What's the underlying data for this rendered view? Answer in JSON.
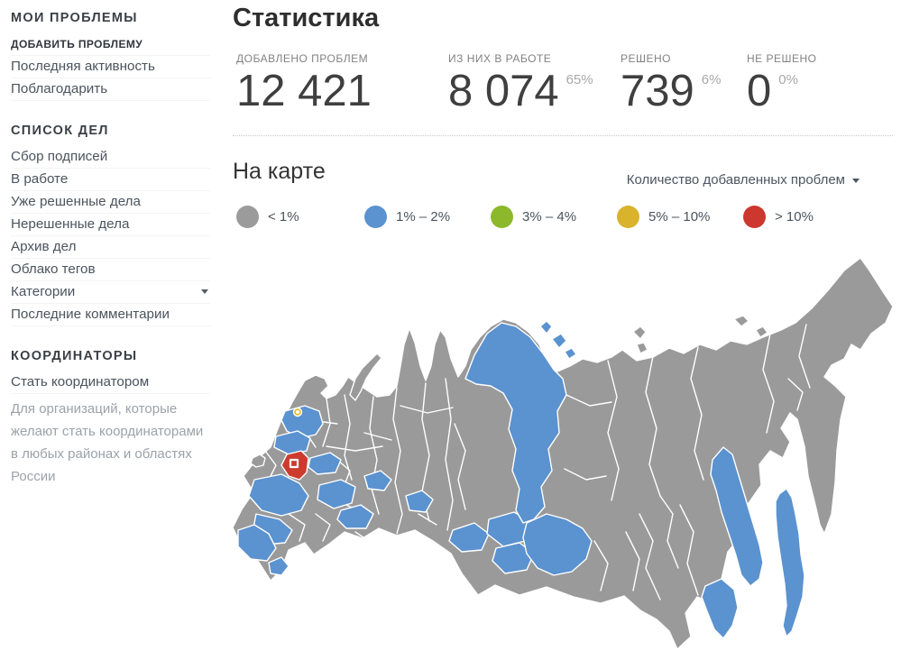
{
  "sidebar": {
    "sections": [
      {
        "title": "МОИ ПРОБЛЕМЫ",
        "items": [
          {
            "label": "ДОБАВИТЬ ПРОБЛЕМУ",
            "style": "emphasis"
          },
          {
            "label": "Последняя активность"
          },
          {
            "label": "Поблагодарить"
          }
        ]
      },
      {
        "title": "СПИСОК ДЕЛ",
        "items": [
          {
            "label": "Сбор подписей"
          },
          {
            "label": "В работе"
          },
          {
            "label": "Уже решенные дела"
          },
          {
            "label": "Нерешенные дела"
          },
          {
            "label": "Архив дел"
          },
          {
            "label": "Облако тегов"
          },
          {
            "label": "Категории",
            "caret": true
          },
          {
            "label": "Последние комментарии"
          }
        ]
      },
      {
        "title": "КООРДИНАТОРЫ",
        "items": [
          {
            "label": "Стать координатором"
          }
        ],
        "note": "Для организаций, которые желают стать координаторами в любых районах и областях России"
      }
    ]
  },
  "main": {
    "title": "Статистика",
    "stats": [
      {
        "label": "ДОБАВЛЕНО ПРОБЛЕМ",
        "value": "12 421",
        "percent": ""
      },
      {
        "label": "ИЗ НИХ В РАБОТЕ",
        "value": "8 074",
        "percent": "65%"
      },
      {
        "label": "РЕШЕНО",
        "value": "739",
        "percent": "6%"
      },
      {
        "label": "НЕ РЕШЕНО",
        "value": "0",
        "percent": "0%"
      }
    ],
    "map_section": {
      "title": "На карте",
      "filter_label": "Количество добавленных проблем",
      "legend": [
        {
          "label": "< 1%",
          "color": "#9b9b9b"
        },
        {
          "label": "1% – 2%",
          "color": "#5b92d0"
        },
        {
          "label": "3% – 4%",
          "color": "#8cb82b"
        },
        {
          "label": "5% – 10%",
          "color": "#d9b32c"
        },
        {
          "label": "> 10%",
          "color": "#cc372e"
        }
      ]
    }
  },
  "colors": {
    "map_gray": "#9a9a9a",
    "map_blue": "#5b92d0",
    "map_red": "#cc3b2e",
    "map_yellow": "#e3bc2a",
    "map_border": "#ffffff"
  }
}
